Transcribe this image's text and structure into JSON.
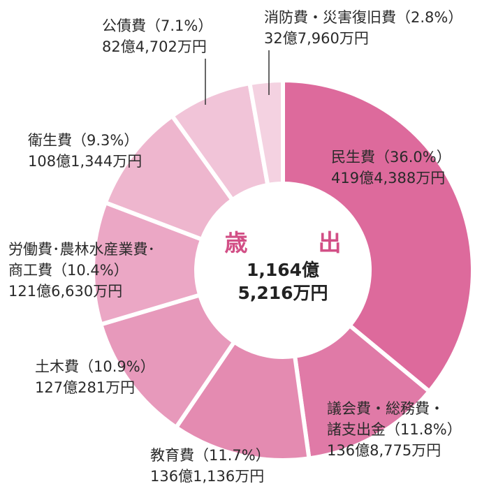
{
  "chart_data": {
    "type": "pie",
    "title": "歳　出",
    "total": [
      "1,164億",
      "5,216万円"
    ],
    "slices": [
      {
        "name": "民生費",
        "percent": 36.0,
        "pct_label": "（36.0%）",
        "amount": "419億4,388万円",
        "color": "#dd6a9c"
      },
      {
        "name": "議会費・総務費・諸支出金",
        "percent": 11.8,
        "pct_label": "（11.8%）",
        "amount": "136億8,775万円",
        "color": "#e07aa7"
      },
      {
        "name": "教育費",
        "percent": 11.7,
        "pct_label": "（11.7%）",
        "amount": "136億1,136万円",
        "color": "#e48bb1"
      },
      {
        "name": "土木費",
        "percent": 10.9,
        "pct_label": "（10.9%）",
        "amount": "127億281万円",
        "color": "#e799bb"
      },
      {
        "name": "労働費･農林水産業費･商工費",
        "percent": 10.4,
        "pct_label": "（10.4%）",
        "amount": "121億6,630万円",
        "color": "#eba7c5"
      },
      {
        "name": "衛生費",
        "percent": 9.3,
        "pct_label": "（9.3%）",
        "amount": "108億1,344万円",
        "color": "#eeb6ce"
      },
      {
        "name": "公債費",
        "percent": 7.1,
        "pct_label": "（7.1%）",
        "amount": "82億4,702万円",
        "color": "#f1c4d8"
      },
      {
        "name": "消防費・災害復旧費",
        "percent": 2.8,
        "pct_label": "（2.8%）",
        "amount": "32億7,960万円",
        "color": "#f4d2e1"
      }
    ]
  },
  "labels": {
    "minsei": {
      "l1": "民生費（36.0%）",
      "l2": "419億4,388万円"
    },
    "gikai": {
      "l1": "議会費・総務費・",
      "l2": "諸支出金（11.8%）",
      "l3": "136億8,775万円"
    },
    "kyoiku": {
      "l1": "教育費（11.7%）",
      "l2": "136億1,136万円"
    },
    "doboku": {
      "l1": "土木費（10.9%）",
      "l2": "127億281万円"
    },
    "rodo": {
      "l1": "労働費･農林水産業費･",
      "l2": "商工費（10.4%）",
      "l3": "121億6,630万円"
    },
    "eisei": {
      "l1": "衛生費（9.3%）",
      "l2": "108億1,344万円"
    },
    "kousai": {
      "l1": "公債費（7.1%）",
      "l2": "82億4,702万円"
    },
    "shobo": {
      "l1": "消防費・災害復旧費（2.8%）",
      "l2": "32億7,960万円"
    }
  }
}
